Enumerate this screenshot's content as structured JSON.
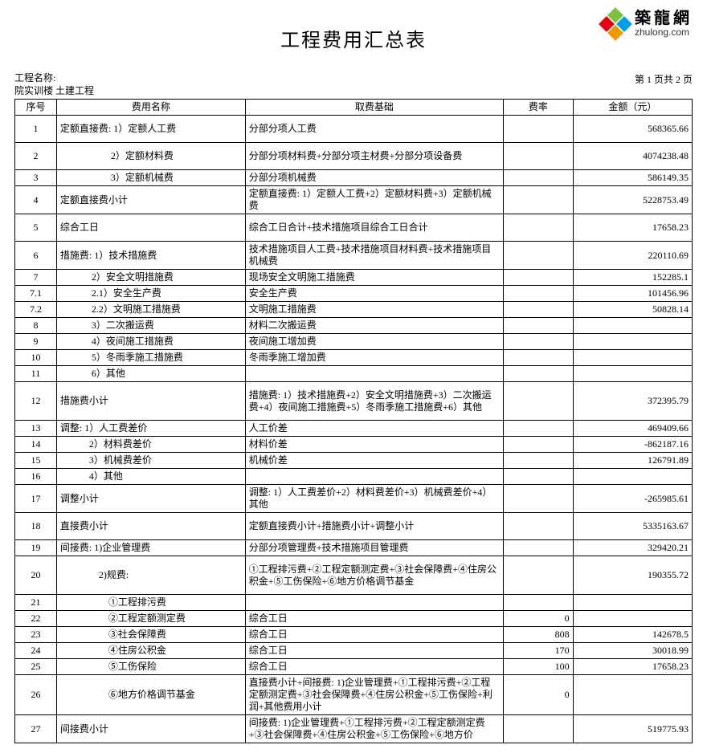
{
  "logo": {
    "cn": "築龍網",
    "en": "zhulong.com",
    "colors": {
      "top": "#7cc242",
      "right": "#00a0e9",
      "bottom": "#f39800",
      "left": "#e60012"
    }
  },
  "title": "工程费用汇总表",
  "meta": {
    "label_project": "工程名称:",
    "project_line2": "院实训楼 土建工程",
    "page_info": "第  1  页共  2  页"
  },
  "headers": {
    "seq": "序号",
    "name": "费用名称",
    "base": "取费基础",
    "rate": "费率",
    "amt": "金额（元）"
  },
  "rows": [
    {
      "seq": "1",
      "name": "定额直接费: 1）定额人工费",
      "base": "分部分项人工费",
      "rate": "",
      "amt": "568365.66",
      "h": "med"
    },
    {
      "seq": "2",
      "name": "　　　　　 2）定额材料费",
      "base": "分部分项材料费+分部分项主材费+分部分项设备费",
      "rate": "",
      "amt": "4074238.48",
      "h": "med"
    },
    {
      "seq": "3",
      "name": "　　　　　 3）定额机械费",
      "base": "分部分项机械费",
      "rate": "",
      "amt": "586149.35"
    },
    {
      "seq": "4",
      "name": "定额直接费小计",
      "base": "定额直接费: 1）定额人工费+2）定额材料费+3）定额机械费",
      "rate": "",
      "amt": "5228753.49",
      "h": "med"
    },
    {
      "seq": "5",
      "name": "综合工日",
      "base": "综合工日合计+技术措施项目综合工日合计",
      "rate": "",
      "amt": "17658.23",
      "h": "med"
    },
    {
      "seq": "6",
      "name": "措施费: 1）技术措施费",
      "base": "技术措施项目人工费+技术措施项目材料费+技术措施项目机械费",
      "rate": "",
      "amt": "220110.69",
      "h": "med"
    },
    {
      "seq": "7",
      "name": "　　　 2）安全文明措施费",
      "base": "现场安全文明施工措施费",
      "rate": "",
      "amt": "152285.1"
    },
    {
      "seq": "7.1",
      "name": "　　　 2.1）安全生产费",
      "base": "安全生产费",
      "rate": "",
      "amt": "101456.96"
    },
    {
      "seq": "7.2",
      "name": "　　　 2.2）文明施工措施费",
      "base": "文明施工措施费",
      "rate": "",
      "amt": "50828.14"
    },
    {
      "seq": "8",
      "name": "　　　 3）二次搬运费",
      "base": "材料二次搬运费",
      "rate": "",
      "amt": ""
    },
    {
      "seq": "9",
      "name": "　　　 4）夜间施工措施费",
      "base": "夜间施工增加费",
      "rate": "",
      "amt": ""
    },
    {
      "seq": "10",
      "name": "　　　 5）冬雨季施工措施费",
      "base": "冬雨季施工增加费",
      "rate": "",
      "amt": ""
    },
    {
      "seq": "11",
      "name": "　　　 6）其他",
      "base": "",
      "rate": "",
      "amt": ""
    },
    {
      "seq": "12",
      "name": "措施费小计",
      "base": "措施费: 1）技术措施费+2）安全文明措施费+3）二次搬运费+4）夜间施工措施费+5）冬雨季施工措施费+6）其他",
      "rate": "",
      "amt": "372395.79",
      "h": "tall"
    },
    {
      "seq": "13",
      "name": "调整: 1）人工费差价",
      "base": "人工价差",
      "rate": "",
      "amt": "469409.66"
    },
    {
      "seq": "14",
      "name": "　　　2）材料费差价",
      "base": "材料价差",
      "rate": "",
      "amt": "-862187.16"
    },
    {
      "seq": "15",
      "name": "　　　3）机械费差价",
      "base": "机械价差",
      "rate": "",
      "amt": "126791.89"
    },
    {
      "seq": "16",
      "name": "　　　4）其他",
      "base": "",
      "rate": "",
      "amt": ""
    },
    {
      "seq": "17",
      "name": "调整小计",
      "base": "调整: 1）人工费差价+2）材料费差价+3）机械费差价+4）其他",
      "rate": "",
      "amt": "-265985.61",
      "h": "med"
    },
    {
      "seq": "18",
      "name": "直接费小计",
      "base": "定额直接费小计+措施费小计+调整小计",
      "rate": "",
      "amt": "5335163.67",
      "h": "med"
    },
    {
      "seq": "19",
      "name": "间接费: 1)企业管理费",
      "base": "分部分项管理费+技术措施项目管理费",
      "rate": "",
      "amt": "329420.21"
    },
    {
      "seq": "20",
      "name": "　　　　2)规费:",
      "base": "①工程排污费+②工程定额测定费+③社会保障费+④住房公积金+⑤工伤保险+⑥地方价格调节基金",
      "rate": "",
      "amt": "190355.72",
      "h": "tall"
    },
    {
      "seq": "21",
      "name": "　　　　　①工程排污费",
      "base": "",
      "rate": "",
      "amt": ""
    },
    {
      "seq": "22",
      "name": "　　　　　②工程定额测定费",
      "base": "综合工日",
      "rate": "0",
      "amt": ""
    },
    {
      "seq": "23",
      "name": "　　　　　③社会保障费",
      "base": "综合工日",
      "rate": "808",
      "amt": "142678.5"
    },
    {
      "seq": "24",
      "name": "　　　　　④住房公积金",
      "base": "综合工日",
      "rate": "170",
      "amt": "30018.99"
    },
    {
      "seq": "25",
      "name": "　　　　　⑤工伤保险",
      "base": "综合工日",
      "rate": "100",
      "amt": "17658.23"
    },
    {
      "seq": "26",
      "name": "　　　　　⑥地方价格调节基金",
      "base": "直接费小计+间接费: 1)企业管理费+①工程排污费+②工程定额测定费+③社会保障费+④住房公积金+⑤工伤保险+利润+其他费用小计",
      "rate": "0",
      "amt": "",
      "h": "tall"
    },
    {
      "seq": "27",
      "name": "间接费小计",
      "base": "间接费: 1)企业管理费+①工程排污费+②工程定额测定费+③社会保障费+④住房公积金+⑤工伤保险+⑥地方价",
      "rate": "",
      "amt": "519775.93",
      "h": "med"
    }
  ]
}
